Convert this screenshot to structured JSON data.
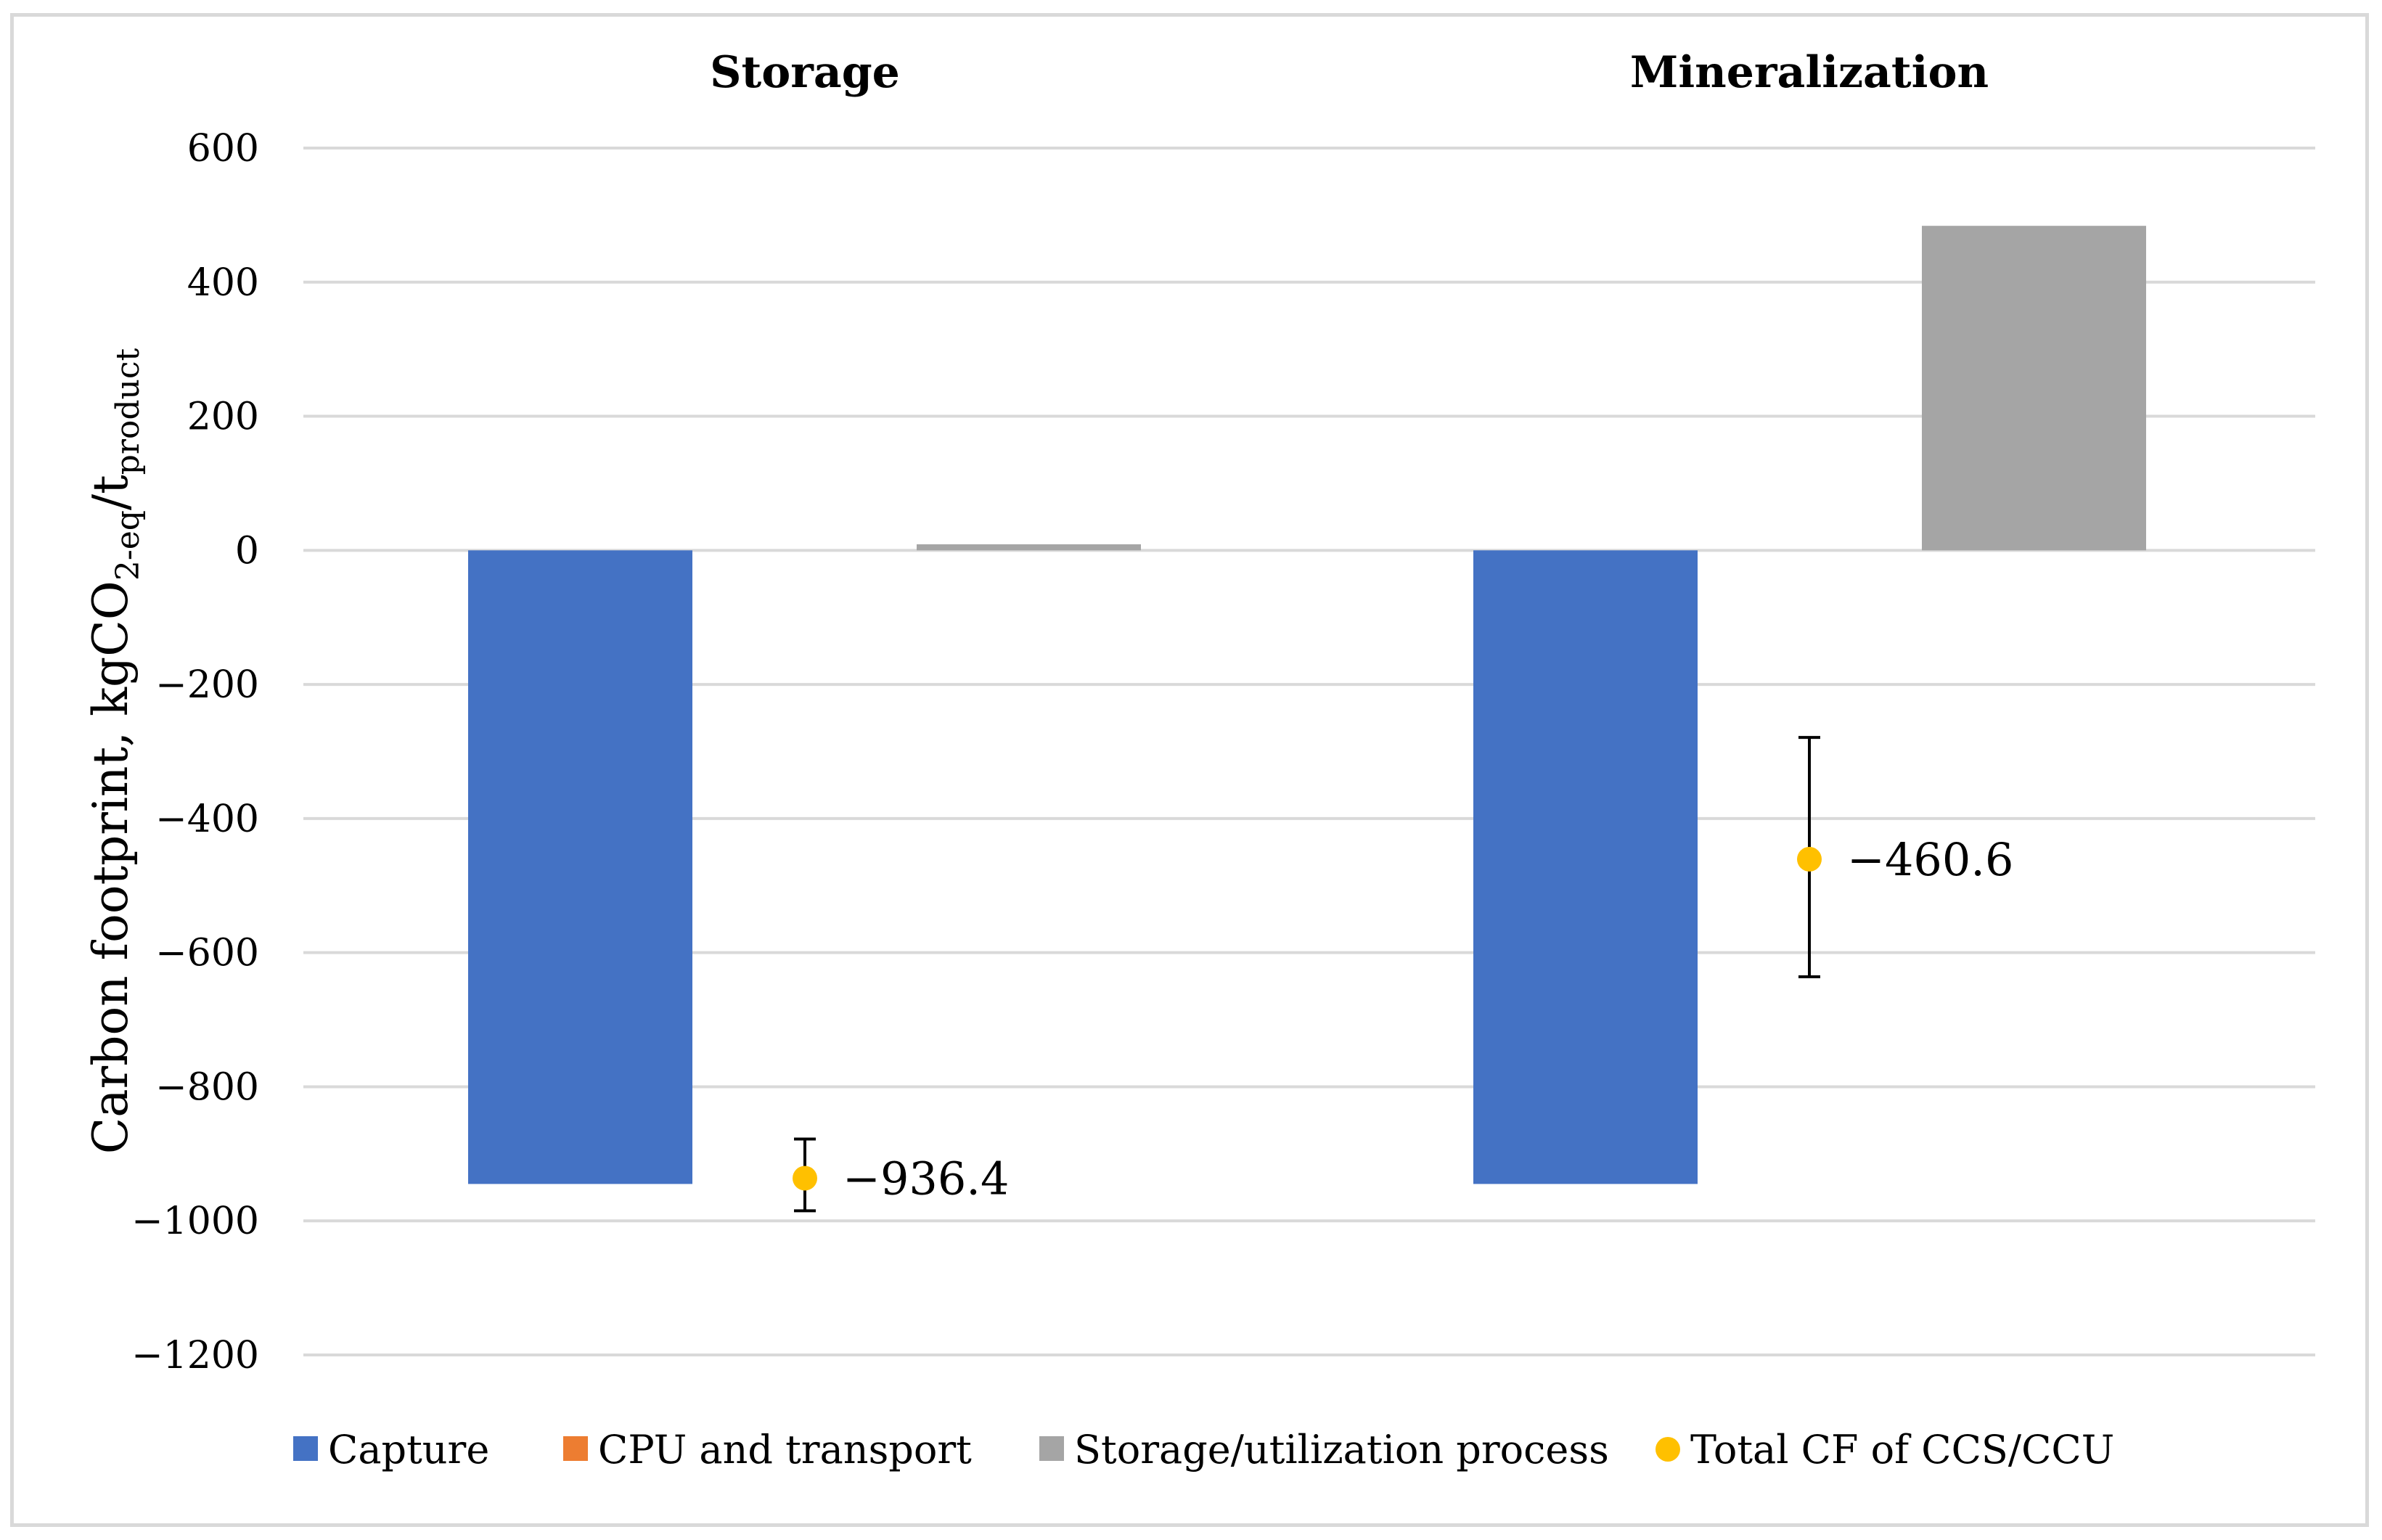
{
  "chart_data": {
    "type": "bar",
    "groups": [
      "Storage",
      "Mineralization"
    ],
    "ylabel": {
      "text": "Carbon footprint, kgCO",
      "sub1": "2-eq",
      "mid": "/t",
      "sub2": "product"
    },
    "ylim": [
      -1200,
      600
    ],
    "yticks": [
      600,
      400,
      200,
      0,
      -200,
      -400,
      -600,
      -800,
      -1000,
      -1200
    ],
    "ytick_labels": [
      "600",
      "400",
      "200",
      "0",
      "−200",
      "−400",
      "−600",
      "−800",
      "−1000",
      "−1200"
    ],
    "grid": true,
    "legend_position": "bottom",
    "series": [
      {
        "name": "Capture",
        "color": "#4472c4",
        "values": [
          -945,
          -945
        ]
      },
      {
        "name": "CPU and transport",
        "color": "#ed7d31",
        "values": [
          0,
          0
        ]
      },
      {
        "name": "Storage/utilization process",
        "color": "#a5a5a5",
        "values": [
          9,
          484
        ]
      }
    ],
    "total": {
      "name": "Total CF of CCS/CCU",
      "color": "#ffc000",
      "values": [
        -936.4,
        -460.6
      ],
      "labels": [
        "−936.4",
        "−460.6"
      ],
      "error_low": [
        -985,
        -636
      ],
      "error_high": [
        -878,
        -279
      ]
    }
  }
}
